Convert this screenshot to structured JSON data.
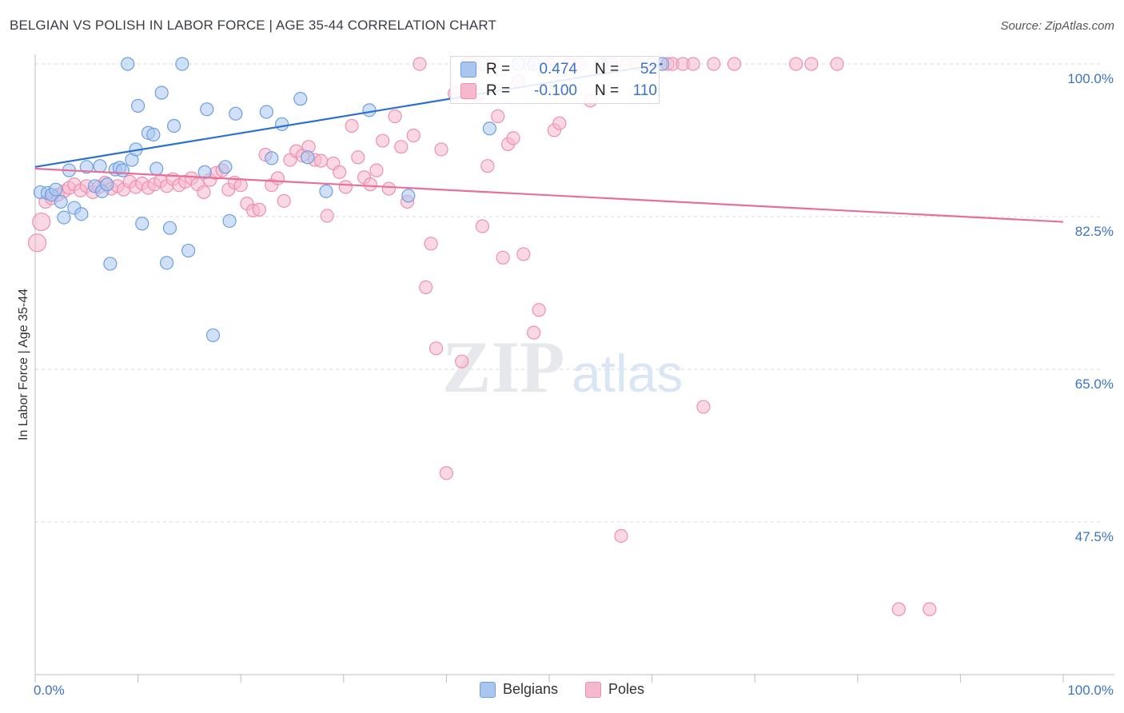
{
  "title": "BELGIAN VS POLISH IN LABOR FORCE | AGE 35-44 CORRELATION CHART",
  "source": "Source: ZipAtlas.com",
  "watermark": {
    "zip": "ZIP",
    "atlas": "atlas"
  },
  "colors": {
    "belgians_fill": "#a9c6f0",
    "belgians_stroke": "#6e9ee0",
    "belgians_line": "#2b6fcf",
    "poles_fill": "#f6b8cc",
    "poles_stroke": "#ee8fb0",
    "poles_line": "#e86f98",
    "grid": "#d5d8de",
    "tick_text": "#3b73c9"
  },
  "stats": {
    "belgians": {
      "r_label": "R =",
      "r_value": "0.474",
      "n_label": "N =",
      "n_value": "52"
    },
    "poles": {
      "r_label": "R =",
      "r_value": "-0.100",
      "n_label": "N =",
      "n_value": "110"
    }
  },
  "chart_data": {
    "type": "scatter",
    "title": "BELGIAN VS POLISH IN LABOR FORCE | AGE 35-44 CORRELATION CHART",
    "xlabel": "",
    "ylabel": "In Labor Force | Age 35-44",
    "xlim": [
      0,
      100
    ],
    "ylim": [
      30,
      100
    ],
    "x_tick_labels": [
      "0.0%",
      "100.0%"
    ],
    "y_ticks": [
      {
        "value": 100.0,
        "label": "100.0%"
      },
      {
        "value": 82.5,
        "label": "82.5%"
      },
      {
        "value": 65.0,
        "label": "65.0%"
      },
      {
        "value": 47.5,
        "label": "47.5%"
      }
    ],
    "grid": true,
    "legend": [
      "Belgians",
      "Poles"
    ],
    "series": [
      {
        "name": "Belgians",
        "trend": {
          "x": [
            0,
            61
          ],
          "y": [
            88.2,
            100.0
          ]
        },
        "points": [
          [
            0.5,
            85.3
          ],
          [
            1.2,
            85.2
          ],
          [
            1.6,
            85.0
          ],
          [
            2.0,
            85.6
          ],
          [
            2.5,
            84.2
          ],
          [
            2.8,
            82.4
          ],
          [
            3.3,
            87.8
          ],
          [
            3.8,
            83.5
          ],
          [
            4.5,
            82.8
          ],
          [
            5.0,
            88.2
          ],
          [
            5.8,
            86.0
          ],
          [
            6.3,
            88.3
          ],
          [
            6.5,
            85.4
          ],
          [
            7.0,
            86.2
          ],
          [
            7.3,
            77.1
          ],
          [
            7.8,
            87.9
          ],
          [
            8.2,
            88.1
          ],
          [
            8.5,
            87.8
          ],
          [
            9.0,
            100.0
          ],
          [
            9.4,
            89.0
          ],
          [
            9.8,
            90.2
          ],
          [
            10.0,
            95.2
          ],
          [
            10.4,
            81.7
          ],
          [
            11.0,
            92.1
          ],
          [
            11.5,
            91.9
          ],
          [
            11.8,
            88.0
          ],
          [
            12.3,
            96.7
          ],
          [
            12.8,
            77.2
          ],
          [
            13.1,
            81.2
          ],
          [
            13.5,
            92.9
          ],
          [
            14.3,
            100.0
          ],
          [
            14.9,
            78.6
          ],
          [
            16.5,
            87.6
          ],
          [
            16.7,
            94.8
          ],
          [
            17.3,
            68.9
          ],
          [
            18.5,
            88.2
          ],
          [
            18.9,
            82.0
          ],
          [
            19.5,
            94.3
          ],
          [
            22.5,
            94.5
          ],
          [
            23.0,
            89.2
          ],
          [
            24.0,
            93.1
          ],
          [
            25.8,
            96.0
          ],
          [
            26.5,
            89.3
          ],
          [
            28.3,
            85.4
          ],
          [
            32.5,
            94.7
          ],
          [
            36.3,
            84.9
          ],
          [
            43.5,
            100.0
          ],
          [
            44.2,
            92.6
          ],
          [
            47.0,
            100.0
          ],
          [
            48.5,
            100.0
          ],
          [
            55.0,
            100.0
          ],
          [
            61.0,
            100.0
          ]
        ]
      },
      {
        "name": "Poles",
        "trend": {
          "x": [
            0,
            100
          ],
          "y": [
            88.0,
            81.9
          ]
        },
        "points": [
          [
            0.2,
            79.5
          ],
          [
            0.6,
            81.9
          ],
          [
            1.0,
            84.2
          ],
          [
            1.6,
            84.6
          ],
          [
            2.2,
            85.0
          ],
          [
            2.8,
            85.4
          ],
          [
            3.3,
            85.8
          ],
          [
            3.8,
            86.2
          ],
          [
            4.4,
            85.5
          ],
          [
            5.0,
            86.0
          ],
          [
            5.6,
            85.3
          ],
          [
            6.2,
            85.9
          ],
          [
            6.8,
            86.4
          ],
          [
            7.4,
            85.7
          ],
          [
            8.0,
            86.0
          ],
          [
            8.6,
            85.6
          ],
          [
            9.2,
            86.5
          ],
          [
            9.8,
            85.9
          ],
          [
            10.4,
            86.3
          ],
          [
            11.0,
            85.8
          ],
          [
            11.6,
            86.2
          ],
          [
            12.2,
            86.6
          ],
          [
            12.8,
            86.0
          ],
          [
            13.4,
            86.8
          ],
          [
            14.0,
            86.1
          ],
          [
            14.6,
            86.5
          ],
          [
            15.2,
            86.9
          ],
          [
            15.8,
            86.2
          ],
          [
            16.4,
            85.3
          ],
          [
            17.0,
            86.7
          ],
          [
            17.6,
            87.5
          ],
          [
            18.2,
            87.8
          ],
          [
            18.8,
            85.6
          ],
          [
            19.4,
            86.4
          ],
          [
            20.0,
            86.1
          ],
          [
            20.6,
            84.0
          ],
          [
            21.2,
            83.2
          ],
          [
            21.8,
            83.3
          ],
          [
            22.4,
            89.6
          ],
          [
            23.0,
            86.1
          ],
          [
            23.6,
            86.9
          ],
          [
            24.2,
            84.3
          ],
          [
            24.8,
            89.0
          ],
          [
            25.4,
            90.0
          ],
          [
            26.0,
            89.5
          ],
          [
            26.6,
            90.5
          ],
          [
            27.2,
            89.0
          ],
          [
            27.8,
            88.9
          ],
          [
            28.4,
            82.6
          ],
          [
            29.0,
            88.6
          ],
          [
            29.6,
            87.6
          ],
          [
            30.2,
            85.9
          ],
          [
            30.8,
            92.9
          ],
          [
            31.4,
            89.3
          ],
          [
            32.0,
            87.0
          ],
          [
            32.6,
            86.2
          ],
          [
            33.2,
            87.8
          ],
          [
            33.8,
            91.2
          ],
          [
            34.4,
            85.7
          ],
          [
            35.0,
            94.0
          ],
          [
            35.6,
            90.5
          ],
          [
            36.2,
            84.2
          ],
          [
            36.8,
            91.8
          ],
          [
            37.4,
            100.0
          ],
          [
            38.0,
            74.4
          ],
          [
            38.5,
            79.4
          ],
          [
            39.0,
            67.4
          ],
          [
            39.5,
            90.2
          ],
          [
            40.0,
            53.1
          ],
          [
            40.8,
            96.6
          ],
          [
            41.5,
            65.9
          ],
          [
            42.0,
            100.0
          ],
          [
            42.5,
            100.0
          ],
          [
            43.0,
            96.5
          ],
          [
            43.5,
            81.4
          ],
          [
            44.0,
            88.3
          ],
          [
            44.5,
            100.0
          ],
          [
            45.0,
            94.0
          ],
          [
            45.5,
            77.8
          ],
          [
            46.0,
            90.8
          ],
          [
            46.5,
            91.5
          ],
          [
            47.0,
            98.0
          ],
          [
            47.5,
            78.2
          ],
          [
            48.0,
            100.0
          ],
          [
            48.5,
            69.2
          ],
          [
            49.0,
            71.8
          ],
          [
            50.0,
            100.0
          ],
          [
            50.5,
            92.4
          ],
          [
            51.0,
            93.2
          ],
          [
            52.0,
            100.0
          ],
          [
            53.0,
            100.0
          ],
          [
            54.0,
            95.8
          ],
          [
            55.5,
            100.0
          ],
          [
            56.0,
            100.0
          ],
          [
            57.0,
            45.9
          ],
          [
            57.5,
            100.0
          ],
          [
            58.5,
            100.0
          ],
          [
            60.0,
            100.0
          ],
          [
            61.5,
            100.0
          ],
          [
            62.0,
            100.0
          ],
          [
            63.0,
            100.0
          ],
          [
            64.0,
            100.0
          ],
          [
            65.0,
            60.7
          ],
          [
            66.0,
            100.0
          ],
          [
            68.0,
            100.0
          ],
          [
            74.0,
            100.0
          ],
          [
            75.5,
            100.0
          ],
          [
            78.0,
            100.0
          ],
          [
            84.0,
            37.5
          ],
          [
            87.0,
            37.5
          ]
        ]
      }
    ]
  },
  "legend": {
    "belgians": "Belgians",
    "poles": "Poles"
  }
}
